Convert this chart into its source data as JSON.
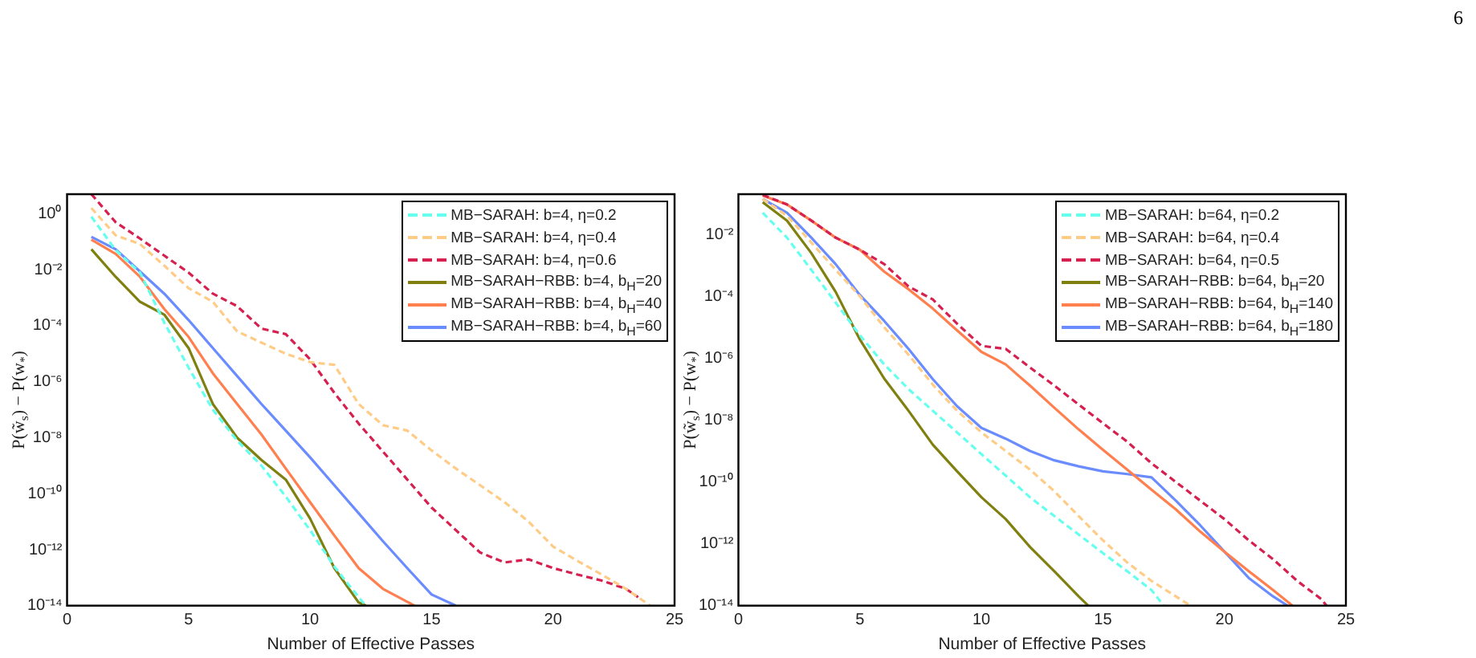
{
  "chart_data": [
    {
      "type": "line",
      "xlabel": "Number of Effective Passes",
      "ylabel": "P(w̃$_{s}$) − P(w$_{*}$)",
      "log": "y",
      "grid": false,
      "legend": "top right",
      "marker": "none",
      "xlim": [
        0,
        25
      ],
      "xticks": [
        0,
        5,
        10,
        15,
        20,
        25
      ],
      "ylim": [
        1e-14,
        5
      ],
      "yticks": [
        {
          "value": 1,
          "label": "10⁰"
        },
        {
          "value": 0.01,
          "label": "10⁻²"
        },
        {
          "value": 0.0001,
          "label": "10⁻⁴"
        },
        {
          "value": 1e-06,
          "label": "10⁻⁶"
        },
        {
          "value": 1e-08,
          "label": "10⁻⁸"
        },
        {
          "value": 1e-10,
          "label": "10⁻¹⁰"
        },
        {
          "value": 1e-12,
          "label": "10⁻¹²"
        },
        {
          "value": 1e-14,
          "label": "10⁻¹⁴"
        }
      ],
      "series": [
        {
          "name": "MB−SARAH: b=4, η=0.2",
          "color": "#66ffee",
          "line_style": "dashed",
          "x": [
            1,
            2,
            3,
            4,
            5,
            6,
            7,
            8,
            9,
            10,
            11,
            12,
            12.3
          ],
          "values": [
            0.79,
            0.05,
            0.008,
            0.00013,
            3.2e-06,
            1e-07,
            7.9e-09,
            1e-09,
            7.9e-11,
            5e-12,
            2.5e-13,
            2e-14,
            1e-14
          ]
        },
        {
          "name": "MB−SARAH: b=4, η=0.4",
          "color": "#ffcc88",
          "line_style": "dashed",
          "x": [
            1,
            2,
            3,
            4,
            5,
            6,
            7,
            8,
            9,
            10,
            11,
            12,
            13,
            14,
            15,
            16,
            17,
            18,
            19,
            20,
            21,
            22,
            23,
            24
          ],
          "values": [
            1.6,
            0.17,
            0.083,
            0.014,
            0.0022,
            0.00072,
            6.3e-05,
            2.5e-05,
            1e-05,
            5e-06,
            4e-06,
            1.6e-07,
            2.8e-08,
            1.8e-08,
            3.5e-09,
            7.9e-10,
            2e-10,
            5e-11,
            1e-11,
            1.3e-12,
            4e-13,
            1.3e-13,
            4e-14,
            1e-14
          ]
        },
        {
          "name": "MB−SARAH: b=4, η=0.6",
          "color": "#d62050",
          "line_style": "dashed",
          "x": [
            1,
            2,
            3,
            4,
            5,
            6,
            7,
            8,
            9,
            10,
            11,
            12,
            13,
            14,
            15,
            16,
            17,
            18,
            19,
            20,
            21,
            22,
            23,
            23.5
          ],
          "values": [
            5,
            0.5,
            0.13,
            0.032,
            0.0079,
            0.0014,
            0.0005,
            7.9e-05,
            5e-05,
            6.3e-06,
            4e-07,
            3.2e-08,
            3.2e-09,
            3.2e-10,
            3.2e-11,
            5e-12,
            7.9e-13,
            3.5e-13,
            4.5e-13,
            2.2e-13,
            1.3e-13,
            7.9e-14,
            4e-14,
            2e-14
          ]
        },
        {
          "name": "MB−SARAH−RBB: b=4, b$_{H}$=20",
          "color": "#808010",
          "line_style": "solid",
          "x": [
            1,
            2,
            3,
            4,
            5,
            6,
            7,
            8,
            9,
            10,
            11,
            12,
            12.3
          ],
          "values": [
            0.054,
            0.0056,
            0.00072,
            0.00025,
            1.6e-05,
            1.6e-07,
            1e-08,
            1.6e-09,
            3.2e-10,
            1.3e-11,
            2.2e-13,
            1.3e-14,
            1e-14
          ]
        },
        {
          "name": "MB−SARAH−RBB: b=4, b$_{H}$=40",
          "color": "#ff7f4f",
          "line_style": "solid",
          "x": [
            1,
            2,
            3,
            4,
            5,
            6,
            7,
            8,
            9,
            10,
            11,
            12,
            13,
            14.3
          ],
          "values": [
            0.12,
            0.037,
            0.0056,
            0.0004,
            4e-05,
            2e-06,
            1.6e-07,
            1.3e-08,
            7.9e-10,
            5e-11,
            3.2e-12,
            2.2e-13,
            4e-14,
            1e-14
          ]
        },
        {
          "name": "MB−SARAH−RBB: b=4, b$_{H}$=60",
          "color": "#6a8cff",
          "line_style": "solid",
          "x": [
            1,
            2,
            3,
            4,
            5,
            6,
            7,
            8,
            9,
            10,
            11,
            12,
            13,
            14,
            15,
            16
          ],
          "values": [
            0.15,
            0.054,
            0.0087,
            0.0014,
            0.00016,
            1.6e-05,
            1.6e-06,
            1.6e-07,
            1.8e-08,
            2e-09,
            2e-10,
            2e-11,
            2e-12,
            2.2e-13,
            2.5e-14,
            1e-14
          ]
        }
      ]
    },
    {
      "type": "line",
      "xlabel": "Number of Effective Passes",
      "ylabel": "P(w̃$_{s}$) − P(w$_{*}$)",
      "log": "y",
      "grid": false,
      "legend": "top right",
      "marker": "none",
      "annotations": [
        "6"
      ],
      "xlim": [
        0,
        25
      ],
      "xticks": [
        0,
        5,
        10,
        15,
        20,
        25
      ],
      "ylim": [
        1e-14,
        0.2
      ],
      "yticks": [
        {
          "value": 0.01,
          "label": "10⁻²"
        },
        {
          "value": 0.0001,
          "label": "10⁻⁴"
        },
        {
          "value": 1e-06,
          "label": "10⁻⁶"
        },
        {
          "value": 1e-08,
          "label": "10⁻⁸"
        },
        {
          "value": 1e-10,
          "label": "10⁻¹⁰"
        },
        {
          "value": 1e-12,
          "label": "10⁻¹²"
        },
        {
          "value": 1e-14,
          "label": "10⁻¹⁴"
        }
      ],
      "series": [
        {
          "name": "MB−SARAH: b=64, η=0.2",
          "color": "#66ffee",
          "line_style": "dashed",
          "x": [
            1,
            2,
            3,
            4,
            5,
            6,
            7,
            8,
            9,
            10,
            11,
            12,
            13,
            14,
            15,
            16,
            17,
            17.5
          ],
          "values": [
            0.05,
            0.0079,
            0.00072,
            6.3e-05,
            5.5e-06,
            6.3e-07,
            1e-07,
            2e-08,
            4e-09,
            7.9e-10,
            1.6e-10,
            3.2e-11,
            7.9e-12,
            2e-12,
            5e-13,
            1.3e-13,
            3.2e-14,
            1e-14
          ]
        },
        {
          "name": "MB−SARAH: b=64, η=0.4",
          "color": "#ffcc88",
          "line_style": "dashed",
          "x": [
            1,
            2,
            3,
            4,
            5,
            6,
            7,
            8,
            9,
            10,
            11,
            12,
            13,
            14,
            15,
            16,
            17,
            18,
            18.6
          ],
          "values": [
            0.14,
            0.04,
            0.0055,
            0.00072,
            0.0001,
            1e-05,
            1.3e-06,
            1.4e-07,
            2e-08,
            4e-09,
            1e-09,
            2.5e-10,
            5e-11,
            7.9e-12,
            1.3e-12,
            2.5e-13,
            6.3e-14,
            2e-14,
            1e-14
          ]
        },
        {
          "name": "MB−SARAH: b=64, η=0.5",
          "color": "#d62050",
          "line_style": "dashed",
          "x": [
            1,
            2,
            3,
            4,
            5,
            6,
            7,
            8,
            9,
            10,
            11,
            12,
            13,
            14,
            15,
            16,
            17,
            18,
            19,
            20,
            21,
            22,
            23,
            24,
            24.2
          ],
          "values": [
            0.19,
            0.093,
            0.028,
            0.0079,
            0.0032,
            0.0011,
            0.00021,
            7.9e-05,
            1.3e-05,
            2.5e-06,
            2e-06,
            5e-07,
            1.3e-07,
            3.2e-08,
            7.9e-09,
            2e-09,
            4e-10,
            1e-10,
            2.5e-11,
            6.3e-12,
            1.3e-12,
            3.2e-13,
            6.3e-14,
            1.6e-14,
            1e-14
          ]
        },
        {
          "name": "MB−SARAH−RBB: b=64, b$_{H}$=20",
          "color": "#808010",
          "line_style": "solid",
          "x": [
            1,
            2,
            3,
            4,
            5,
            6,
            7,
            8,
            9,
            10,
            11,
            12,
            13,
            14,
            14.4
          ],
          "values": [
            0.11,
            0.028,
            0.0025,
            0.00014,
            4e-06,
            2.2e-07,
            2e-08,
            1.6e-09,
            2.2e-10,
            3.2e-11,
            6.3e-12,
            7.9e-13,
            1.3e-13,
            2e-14,
            1e-14
          ]
        },
        {
          "name": "MB−SARAH−RBB: b=64, b$_{H}$=140",
          "color": "#ff7f4f",
          "line_style": "solid",
          "x": [
            1,
            2,
            3,
            4,
            5,
            6,
            7,
            8,
            9,
            10,
            11,
            12,
            13,
            14,
            15,
            16,
            17,
            18,
            19,
            20,
            21,
            22,
            22.8
          ],
          "values": [
            0.18,
            0.093,
            0.028,
            0.0079,
            0.0032,
            0.00063,
            0.00017,
            4e-05,
            7.9e-06,
            1.6e-06,
            6.3e-07,
            1.3e-07,
            2.5e-08,
            5e-09,
            1.1e-09,
            2.5e-10,
            5.6e-11,
            1.3e-11,
            2.5e-12,
            5.6e-13,
            1.3e-13,
            3.2e-14,
            1e-14
          ]
        },
        {
          "name": "MB−SARAH−RBB: b=64, b$_{H}$=180",
          "color": "#6a8cff",
          "line_style": "solid",
          "x": [
            1,
            2,
            3,
            4,
            5,
            6,
            7,
            8,
            9,
            10,
            11,
            12,
            13,
            14,
            15,
            16,
            17,
            18,
            19,
            20,
            21,
            22,
            22.6
          ],
          "values": [
            0.14,
            0.05,
            0.0079,
            0.0011,
            0.00011,
            1.6e-05,
            2e-06,
            2.1e-07,
            2.8e-08,
            5.6e-09,
            2.5e-09,
            1e-09,
            5e-10,
            3.2e-10,
            2.2e-10,
            1.8e-10,
            1.4e-10,
            2.5e-11,
            4e-12,
            5.6e-13,
            7.9e-14,
            2e-14,
            1e-14
          ]
        }
      ]
    }
  ]
}
